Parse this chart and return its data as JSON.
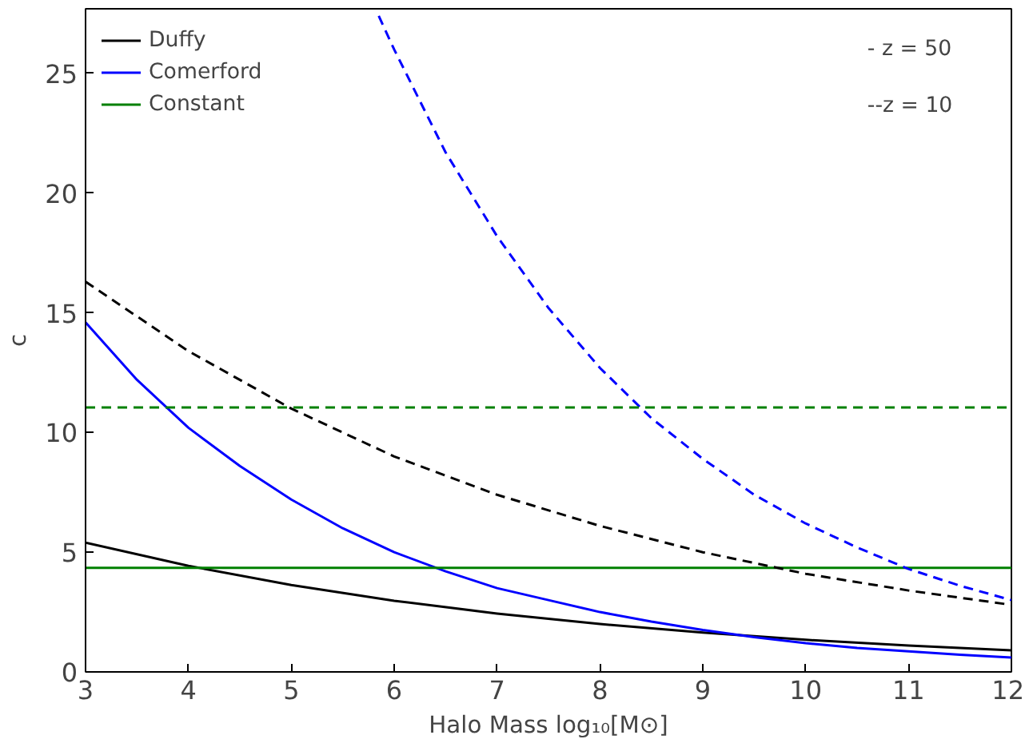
{
  "chart_data": {
    "type": "line",
    "xlabel": "Halo Mass log₁₀[M⊙]",
    "ylabel": "c",
    "xlim": [
      3,
      12
    ],
    "ylim": [
      0,
      27.7
    ],
    "xticks": [
      3,
      4,
      5,
      6,
      7,
      8,
      9,
      10,
      11,
      12
    ],
    "yticks": [
      0,
      5,
      10,
      15,
      20,
      25
    ],
    "grid": false,
    "legend": "top left",
    "marker": "none",
    "annotations": [
      "- z = 50",
      "--z = 10"
    ],
    "series": [
      {
        "name": "Duffy",
        "color": "#000000",
        "line_style": "solid",
        "x": [
          3,
          4,
          5,
          6,
          7,
          8,
          9,
          10,
          11,
          12
        ],
        "values": [
          5.4,
          4.43,
          3.63,
          2.97,
          2.44,
          2.0,
          1.64,
          1.34,
          1.1,
          0.9
        ]
      },
      {
        "name": "Comerford",
        "color": "#0000ff",
        "line_style": "solid",
        "x": [
          3,
          3.5,
          4,
          4.5,
          5,
          5.5,
          6,
          6.5,
          7,
          7.5,
          8,
          8.5,
          9,
          9.5,
          10,
          10.5,
          11,
          11.5,
          12
        ],
        "values": [
          14.6,
          12.2,
          10.2,
          8.6,
          7.2,
          6.0,
          5.0,
          4.2,
          3.5,
          3.0,
          2.5,
          2.1,
          1.75,
          1.45,
          1.2,
          1.0,
          0.86,
          0.72,
          0.6
        ]
      },
      {
        "name": "Constant",
        "color": "#008000",
        "line_style": "solid",
        "x": [
          3,
          12
        ],
        "values": [
          4.35,
          4.35
        ]
      },
      {
        "color": "#000000",
        "line_style": "dashed",
        "x": [
          3,
          4,
          5,
          6,
          7,
          8,
          9,
          10,
          11,
          12
        ],
        "values": [
          16.3,
          13.4,
          11.0,
          9.0,
          7.4,
          6.1,
          5.0,
          4.1,
          3.4,
          2.8
        ]
      },
      {
        "color": "#0000ff",
        "line_style": "dashed",
        "x": [
          5.85,
          6,
          6.5,
          7,
          7.5,
          8,
          8.5,
          9,
          9.5,
          10,
          10.5,
          11,
          11.5,
          12
        ],
        "values": [
          27.4,
          26.0,
          21.7,
          18.2,
          15.2,
          12.7,
          10.6,
          8.9,
          7.4,
          6.2,
          5.2,
          4.3,
          3.6,
          3.0
        ]
      },
      {
        "color": "#008000",
        "line_style": "dashed",
        "x": [
          3,
          12
        ],
        "values": [
          11.05,
          11.05
        ]
      }
    ]
  }
}
